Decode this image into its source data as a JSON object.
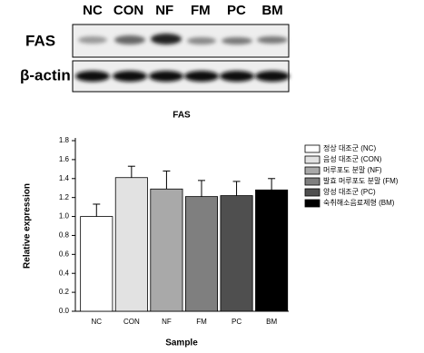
{
  "blot": {
    "lanes": [
      "NC",
      "CON",
      "NF",
      "FM",
      "PC",
      "BM"
    ],
    "rows": [
      "FAS",
      "β-actin"
    ]
  },
  "chart_data": {
    "type": "bar",
    "title": "FAS",
    "x_label": "Sample",
    "y_label": "Relative expression",
    "categories": [
      "NC",
      "CON",
      "NF",
      "FM",
      "PC",
      "BM"
    ],
    "values": [
      1.0,
      1.41,
      1.29,
      1.21,
      1.22,
      1.28
    ],
    "errors": [
      0.13,
      0.12,
      0.19,
      0.17,
      0.15,
      0.12
    ],
    "colors": [
      "#ffffff",
      "#e2e2e2",
      "#a9a9a9",
      "#7f7f7f",
      "#4f4f4f",
      "#000000"
    ],
    "legend": [
      "정상 대조군 (NC)",
      "음성 대조군 (CON)",
      "머루포도 분말 (NF)",
      "발효 머루포도 분말 (FM)",
      "양성 대조군 (PC)",
      "숙취해소음료제형 (BM)"
    ],
    "ylim": [
      0,
      1.8
    ],
    "yticks": [
      {
        "value": 0,
        "label": "0.0"
      },
      {
        "value": 0.2,
        "label": "0.2"
      },
      {
        "value": 0.4,
        "label": "0.4"
      },
      {
        "value": 0.6,
        "label": "0.6"
      },
      {
        "value": 0.8,
        "label": "0.8"
      },
      {
        "value": 1,
        "label": "1.0"
      },
      {
        "value": 1.2,
        "label": "1.2"
      },
      {
        "value": 1.4,
        "label": "1.4"
      },
      {
        "value": 1.6,
        "label": "1.6"
      },
      {
        "value": 1.8,
        "label": "1.8"
      }
    ]
  }
}
